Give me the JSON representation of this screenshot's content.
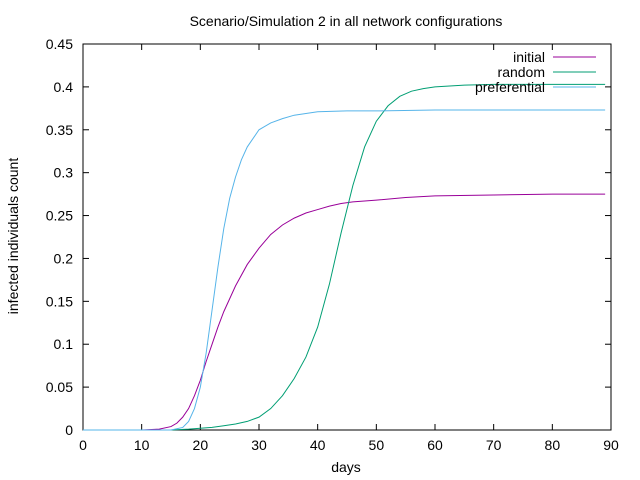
{
  "chart_data": {
    "type": "line",
    "title": "Scenario/Simulation 2 in all network configurations",
    "xlabel": "days",
    "ylabel": "infected individuals count",
    "xlim": [
      0,
      90
    ],
    "ylim": [
      0,
      0.45
    ],
    "xticks": [
      0,
      10,
      20,
      30,
      40,
      50,
      60,
      70,
      80,
      90
    ],
    "yticks": [
      0,
      0.05,
      0.1,
      0.15,
      0.2,
      0.25,
      0.3,
      0.35,
      0.4,
      0.45
    ],
    "grid": false,
    "legend_position": "top-right",
    "series": [
      {
        "name": "initial",
        "color": "#990099",
        "x": [
          0,
          10,
          13,
          15,
          16,
          17,
          18,
          19,
          20,
          21,
          22,
          23,
          24,
          25,
          26,
          28,
          30,
          32,
          34,
          36,
          38,
          40,
          42,
          44,
          46,
          50,
          55,
          60,
          70,
          80,
          89
        ],
        "y": [
          0,
          0,
          0.001,
          0.004,
          0.008,
          0.015,
          0.025,
          0.04,
          0.058,
          0.08,
          0.1,
          0.12,
          0.138,
          0.153,
          0.168,
          0.193,
          0.212,
          0.228,
          0.239,
          0.247,
          0.253,
          0.257,
          0.261,
          0.264,
          0.266,
          0.268,
          0.271,
          0.273,
          0.274,
          0.275,
          0.275
        ]
      },
      {
        "name": "random",
        "color": "#009e73",
        "x": [
          0,
          10,
          15,
          18,
          20,
          22,
          24,
          26,
          28,
          30,
          32,
          34,
          36,
          38,
          40,
          42,
          44,
          46,
          48,
          50,
          52,
          54,
          56,
          58,
          60,
          65,
          70,
          80,
          89
        ],
        "y": [
          0,
          0,
          0,
          0.001,
          0.002,
          0.003,
          0.005,
          0.007,
          0.01,
          0.015,
          0.025,
          0.04,
          0.06,
          0.085,
          0.12,
          0.17,
          0.23,
          0.285,
          0.33,
          0.36,
          0.378,
          0.389,
          0.395,
          0.398,
          0.4,
          0.402,
          0.403,
          0.403,
          0.403
        ]
      },
      {
        "name": "preferential",
        "color": "#56b4e9",
        "x": [
          0,
          10,
          15,
          17,
          18,
          19,
          20,
          21,
          22,
          23,
          24,
          25,
          26,
          27,
          28,
          30,
          32,
          34,
          36,
          38,
          40,
          45,
          50,
          60,
          70,
          80,
          89
        ],
        "y": [
          0,
          0,
          0,
          0.003,
          0.01,
          0.025,
          0.05,
          0.09,
          0.14,
          0.19,
          0.235,
          0.27,
          0.295,
          0.315,
          0.33,
          0.35,
          0.358,
          0.363,
          0.367,
          0.369,
          0.371,
          0.372,
          0.372,
          0.373,
          0.373,
          0.373,
          0.373
        ]
      }
    ]
  }
}
